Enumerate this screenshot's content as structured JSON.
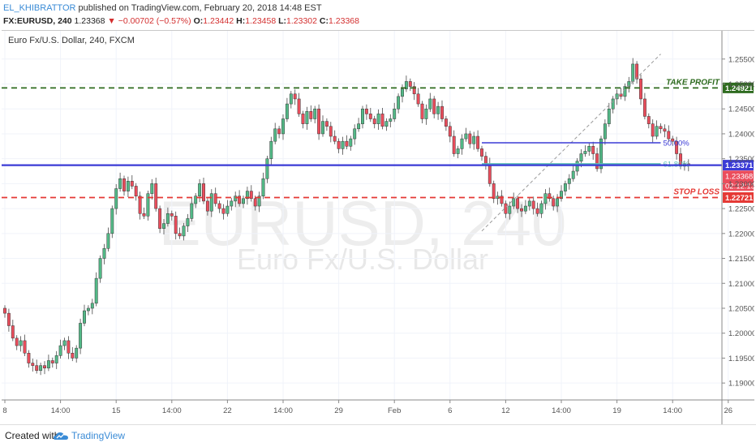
{
  "header": {
    "author": "EL_KHIBRATTOR",
    "published": "published on TradingView.com, February 20, 2018 14:48 EST",
    "symbol": "FX:EURUSD, 240",
    "last": "1.23368",
    "change": "▼ −0.00702 (−0.57%)",
    "open_label": "O:",
    "open": "1.23442",
    "high_label": "H:",
    "high": "1.23458",
    "low_label": "L:",
    "low": "1.23302",
    "close_label": "C:",
    "close": "1.23368"
  },
  "symbol_title": "Euro Fx/U.S. Dollar, 240, FXCM",
  "watermark": {
    "big": "EURUSD, 240",
    "small": "Euro Fx/U.S. Dollar"
  },
  "footer": {
    "created_with": "Created with",
    "brand": "TradingView"
  },
  "colors": {
    "up": "#53b987",
    "down": "#eb4d5c",
    "take_profit": "#2e6b1f",
    "stop_loss": "#e53935",
    "blue_line": "#3b3bd6",
    "fib_teal": "#5cc0b5"
  },
  "chart_data": {
    "type": "candlestick",
    "ylim": [
      1.1875,
      1.257
    ],
    "price_ticks": [
      "1.25500",
      "1.25000",
      "1.24500",
      "1.24000",
      "1.23500",
      "1.23000",
      "1.22500",
      "1.22000",
      "1.21500",
      "1.21000",
      "1.20500",
      "1.20000",
      "1.19500",
      "1.19000"
    ],
    "time_ticks": [
      "8",
      "14:00",
      "15",
      "14:00",
      "22",
      "14:00",
      "29",
      "Feb",
      "6",
      "12",
      "14:00",
      "19",
      "14:00",
      "26"
    ],
    "time_tick_bar": [
      0,
      14,
      28,
      42,
      56,
      70,
      84,
      98,
      112,
      126,
      140,
      154,
      168,
      182
    ],
    "bar_count": 175,
    "levels": [
      {
        "name": "take-profit",
        "label": "TAKE PROFIT",
        "price": 1.24921,
        "tag": "1.24921",
        "style": "dashed",
        "color": "#2e6b1f"
      },
      {
        "name": "stop-loss",
        "label": "STOP LOSS",
        "price": 1.22721,
        "tag": "1.22721",
        "style": "dashed",
        "color": "#e53935"
      },
      {
        "name": "support",
        "label": "",
        "price": 1.23371,
        "tag": "1.23371",
        "style": "solid",
        "color": "#3b3bd6"
      }
    ],
    "current_price_tag": "1.23368",
    "countdown_tag": "02:12:13",
    "fib": [
      {
        "label": "50.00%",
        "price": 1.2382
      },
      {
        "label": "61.80%",
        "price": 1.234
      }
    ],
    "closes": [
      1.204,
      1.2015,
      1.199,
      1.1975,
      1.1985,
      1.196,
      1.194,
      1.1935,
      1.1925,
      1.1935,
      1.193,
      1.1945,
      1.194,
      1.1955,
      1.1975,
      1.1985,
      1.196,
      1.195,
      1.197,
      1.202,
      1.2045,
      1.205,
      1.206,
      1.211,
      1.215,
      1.217,
      1.22,
      1.225,
      1.229,
      1.231,
      1.2285,
      1.2305,
      1.2295,
      1.2275,
      1.224,
      1.2235,
      1.228,
      1.23,
      1.225,
      1.221,
      1.222,
      1.224,
      1.2235,
      1.22,
      1.2195,
      1.2215,
      1.223,
      1.226,
      1.2275,
      1.23,
      1.2265,
      1.2245,
      1.228,
      1.226,
      1.225,
      1.224,
      1.2255,
      1.2265,
      1.2275,
      1.226,
      1.227,
      1.2285,
      1.227,
      1.2255,
      1.2275,
      1.231,
      1.235,
      1.2385,
      1.241,
      1.24,
      1.243,
      1.246,
      1.248,
      1.247,
      1.244,
      1.242,
      1.2445,
      1.243,
      1.245,
      1.24,
      1.2425,
      1.2415,
      1.2395,
      1.2385,
      1.237,
      1.2385,
      1.2375,
      1.239,
      1.241,
      1.242,
      1.245,
      1.244,
      1.243,
      1.242,
      1.244,
      1.2415,
      1.2425,
      1.243,
      1.245,
      1.2475,
      1.249,
      1.2505,
      1.2495,
      1.248,
      1.246,
      1.243,
      1.245,
      1.247,
      1.244,
      1.2455,
      1.243,
      1.2415,
      1.2395,
      1.236,
      1.237,
      1.239,
      1.24,
      1.238,
      1.2395,
      1.237,
      1.2355,
      1.234,
      1.23,
      1.227,
      1.2275,
      1.226,
      1.224,
      1.2255,
      1.227,
      1.225,
      1.2245,
      1.2255,
      1.2265,
      1.225,
      1.224,
      1.226,
      1.228,
      1.227,
      1.2255,
      1.227,
      1.2285,
      1.23,
      1.231,
      1.2325,
      1.2345,
      1.236,
      1.2365,
      1.2375,
      1.236,
      1.233,
      1.239,
      1.242,
      1.245,
      1.247,
      1.248,
      1.2475,
      1.2495,
      1.2505,
      1.254,
      1.251,
      1.247,
      1.2435,
      1.242,
      1.2395,
      1.2415,
      1.241,
      1.2405,
      1.239,
      1.2385,
      1.236,
      1.2335,
      1.234,
      1.23368
    ]
  }
}
